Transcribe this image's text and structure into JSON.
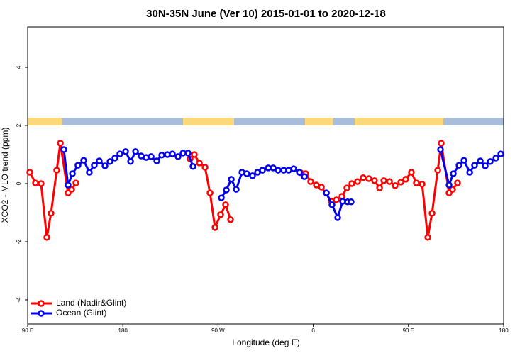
{
  "chart_data": {
    "type": "line",
    "title": "30N-35N June (Ver 10)   2015-01-01 to 2020-12-18",
    "x_label": "Longitude (deg E)",
    "y_label": "XCO2 - MLO trend (ppm)",
    "xlim": [
      90,
      540
    ],
    "xticks": [
      {
        "value": 90,
        "label": "90 E"
      },
      180,
      {
        "value": 270,
        "label": "90 W"
      },
      {
        "value": 360,
        "label": "0"
      },
      {
        "value": 450,
        "label": "90 E"
      },
      {
        "value": 540,
        "label": "180"
      }
    ],
    "ylim": [
      -4.83,
      5.39
    ],
    "yticks": [
      -4,
      -2,
      0,
      2,
      4
    ],
    "legend": "lower left",
    "series": [
      {
        "name": "Land (Nadir&Glint)",
        "color": "#ff0000",
        "x": [
          92,
          97.4,
          102.7,
          108.1,
          112.1,
          117.5,
          120.9,
          128.2,
          131.6,
          135.6,
          null,
          243.6,
          247.6,
          252.3,
          257.7,
          262.4,
          267.1,
          272.4,
          277.1,
          281.8,
          null,
          348.2,
          352.9,
          357.6,
          363,
          367.7,
          377.1,
          381.8,
          387.1,
          391.8,
          396.5,
          401.9,
          407.2,
          412.6,
          417.9,
          422.7,
          426.7,
          432.1,
          437.4,
          442.8,
          447.5,
          452.8,
          457.5,
          462.9,
          468.3,
          472.3,
          477.7,
          481,
          488.4,
          491.7,
          496.4
        ],
        "values": [
          0.39,
          0.02,
          0.0,
          -1.85,
          -1.02,
          0.46,
          1.39,
          -0.32,
          -0.2,
          0.02,
          null,
          0.85,
          1.0,
          0.71,
          0.56,
          -0.32,
          -1.51,
          -1.07,
          -0.73,
          -1.24,
          null,
          0.37,
          0.34,
          0.07,
          -0.05,
          -0.12,
          -0.61,
          -0.56,
          -0.44,
          -0.15,
          0.0,
          0.07,
          0.2,
          0.17,
          0.1,
          -0.15,
          0.1,
          0.07,
          -0.07,
          0.05,
          0.15,
          0.39,
          0.02,
          -0.02,
          -1.85,
          -1.02,
          0.46,
          1.39,
          -0.32,
          -0.2,
          0.02
        ]
      },
      {
        "name": "Ocean (Glint)",
        "color": "#0000ee",
        "x": [
          124.2,
          128.2,
          132.3,
          137.6,
          143,
          148.3,
          153,
          157.7,
          163.1,
          167.8,
          172.5,
          177.2,
          182.6,
          187.3,
          192,
          197.3,
          202,
          206.7,
          212.1,
          216.8,
          222.1,
          226.8,
          232.2,
          236.9,
          241.6,
          246.3,
          null,
          273.1,
          277.8,
          282.5,
          287.2,
          292.6,
          297.2,
          302.6,
          307.3,
          312,
          317.4,
          322.1,
          326.8,
          332.1,
          336.8,
          341.5,
          346.9,
          351.6,
          null,
          372.4,
          377.7,
          383.1,
          387.8,
          392.5,
          395.8,
          null,
          480.3,
          488.4,
          492.4,
          497.8,
          502.5,
          507.9,
          512.5,
          517.9,
          522.6,
          527.3,
          532.7,
          537.4
        ],
        "values": [
          1.17,
          -0.05,
          0.34,
          0.63,
          0.8,
          0.39,
          0.63,
          0.78,
          0.61,
          0.76,
          0.88,
          1.02,
          1.1,
          0.76,
          1.1,
          0.95,
          0.9,
          0.93,
          0.78,
          0.98,
          1.0,
          1.02,
          0.93,
          1.05,
          1.05,
          0.59,
          null,
          -0.49,
          -0.22,
          0.15,
          -0.2,
          0.39,
          0.34,
          0.27,
          0.39,
          0.46,
          0.54,
          0.54,
          0.46,
          0.46,
          0.46,
          0.51,
          0.39,
          0.24,
          null,
          -0.32,
          -0.73,
          -1.17,
          -0.61,
          -0.63,
          -0.63,
          null,
          1.17,
          -0.05,
          0.34,
          0.63,
          0.8,
          0.39,
          0.63,
          0.78,
          0.61,
          0.76,
          0.88,
          1.02
        ]
      }
    ]
  }
}
